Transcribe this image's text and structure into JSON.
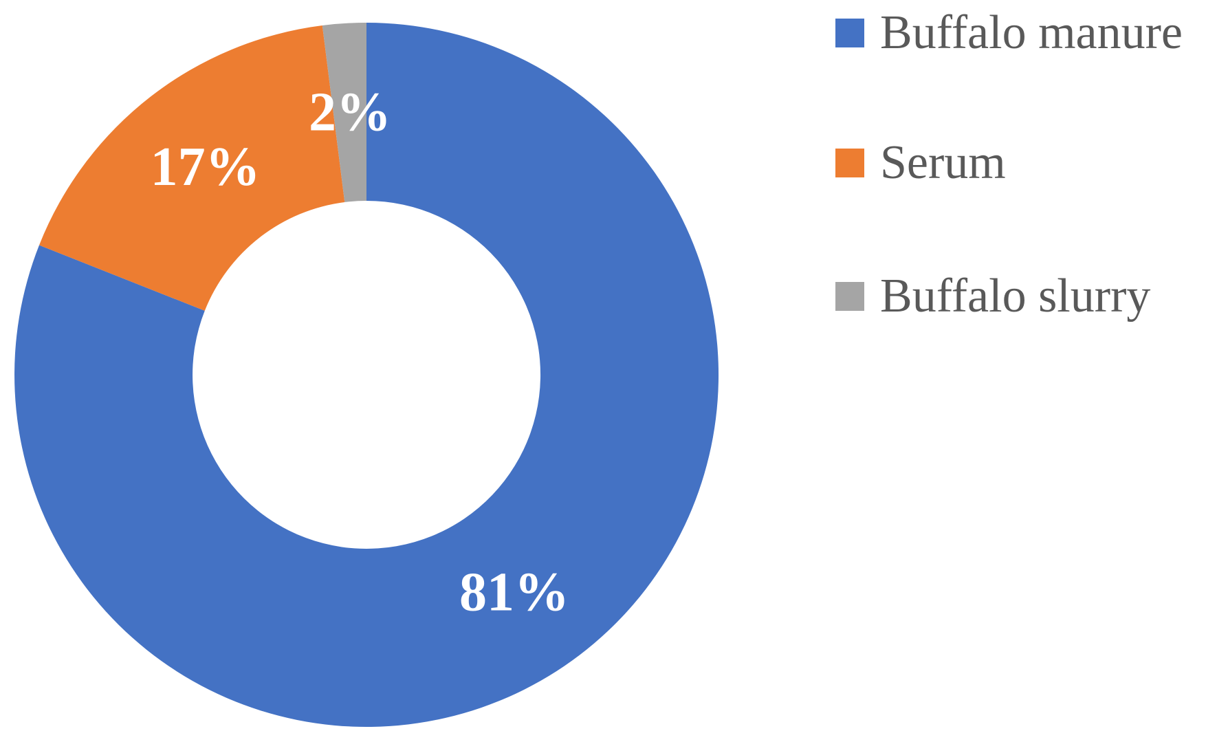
{
  "chart_data": {
    "type": "pie",
    "subtype": "donut",
    "title": "",
    "unit": "percent",
    "hole_ratio": 0.5,
    "start_angle_deg": 0,
    "direction": "clockwise",
    "legend_position": "right",
    "background_color": "#ffffff",
    "data_label_color": "#ffffff",
    "legend_text_color": "#595959",
    "slices": [
      {
        "label": "Buffalo manure",
        "value": 81,
        "data_label": "81%",
        "color": "#4472C4"
      },
      {
        "label": "Serum",
        "value": 17,
        "data_label": "17%",
        "color": "#ED7D31"
      },
      {
        "label": "Buffalo slurry",
        "value": 2,
        "data_label": "2%",
        "color": "#A5A5A5"
      }
    ]
  }
}
